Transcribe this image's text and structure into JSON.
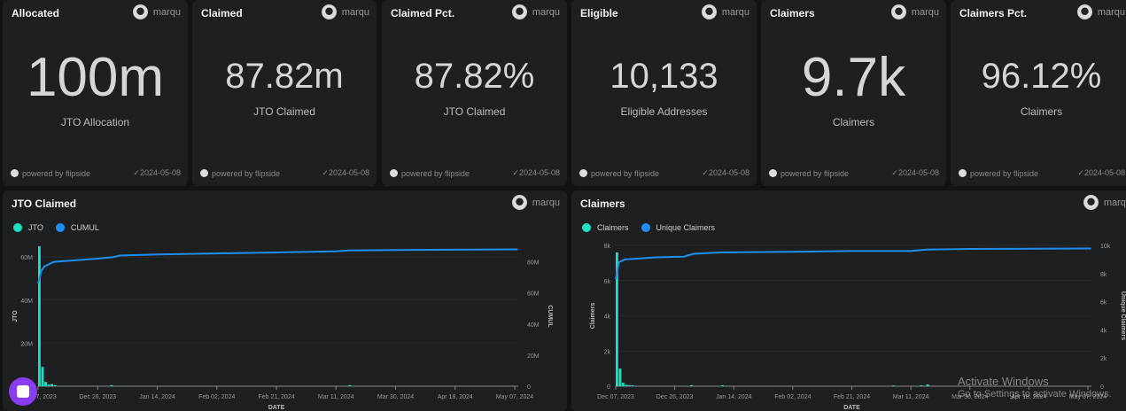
{
  "kpis": [
    {
      "title": "Allocated",
      "author": "marqu",
      "value": "100m",
      "label": "JTO Allocation",
      "powered": "powered by flipside",
      "date": "2024-05-08"
    },
    {
      "title": "Claimed",
      "author": "marqu",
      "value": "87.82m",
      "label": "JTO Claimed",
      "powered": "powered by flipside",
      "date": "2024-05-08"
    },
    {
      "title": "Claimed Pct.",
      "author": "marqu",
      "value": "87.82%",
      "label": "JTO Claimed",
      "powered": "powered by flipside",
      "date": "2024-05-08"
    },
    {
      "title": "Eligible",
      "author": "marqu",
      "value": "10,133",
      "label": "Eligible Addresses",
      "powered": "powered by flipside",
      "date": "2024-05-08"
    },
    {
      "title": "Claimers",
      "author": "marqu",
      "value": "9.7k",
      "label": "Claimers",
      "powered": "powered by flipside",
      "date": "2024-05-08"
    },
    {
      "title": "Claimers Pct.",
      "author": "marqu",
      "value": "96.12%",
      "label": "Claimers",
      "powered": "powered by flipside",
      "date": "2024-05-08"
    }
  ],
  "colors": {
    "bar": "#1de0c5",
    "line": "#1f8ef1"
  },
  "chart_data": [
    {
      "type": "bar+line",
      "title": "JTO Claimed",
      "author": "marqu",
      "xlabel": "DATE",
      "ylabel": "JTO",
      "y2label": "CUMUL",
      "legend": [
        "JTO",
        "CUMUL"
      ],
      "xticks": [
        "Dec 07, 2023",
        "Dec 26, 2023",
        "Jan 14, 2024",
        "Feb 02, 2024",
        "Feb 21, 2024",
        "Mar 11, 2024",
        "Mar 30, 2024",
        "Apr 18, 2024",
        "May 07, 2024"
      ],
      "yticks": [
        "0",
        "20M",
        "40M",
        "60M"
      ],
      "y2ticks": [
        "0",
        "20M",
        "40M",
        "60M",
        "80M"
      ],
      "ylim": [
        0,
        65000000
      ],
      "y2lim": [
        0,
        90000000
      ],
      "bars": [
        [
          "2023-12-07",
          65000000
        ],
        [
          "2023-12-08",
          9000000
        ],
        [
          "2023-12-09",
          2000000
        ],
        [
          "2023-12-10",
          800000
        ],
        [
          "2023-12-11",
          1000000
        ],
        [
          "2023-12-12",
          500000
        ],
        [
          "2023-12-30",
          500000
        ],
        [
          "2024-03-15",
          500000
        ]
      ],
      "line": [
        [
          "2023-12-07",
          66000000
        ],
        [
          "2023-12-08",
          74000000
        ],
        [
          "2023-12-09",
          77000000
        ],
        [
          "2023-12-12",
          80000000
        ],
        [
          "2023-12-26",
          82000000
        ],
        [
          "2023-12-31",
          83000000
        ],
        [
          "2024-01-02",
          84000000
        ],
        [
          "2024-01-14",
          84700000
        ],
        [
          "2024-02-02",
          85400000
        ],
        [
          "2024-02-21",
          86000000
        ],
        [
          "2024-03-11",
          86700000
        ],
        [
          "2024-03-15",
          87300000
        ],
        [
          "2024-03-30",
          87600000
        ],
        [
          "2024-04-18",
          87800000
        ],
        [
          "2024-05-08",
          88000000
        ]
      ]
    },
    {
      "type": "bar+line",
      "title": "Claimers",
      "author": "marqu",
      "xlabel": "DATE",
      "ylabel": "Claimers",
      "y2label": "Unique Claimers",
      "legend": [
        "Claimers",
        "Unique Claimers"
      ],
      "xticks": [
        "Dec 07, 2023",
        "Dec 26, 2023",
        "Jan 14, 2024",
        "Feb 02, 2024",
        "Feb 21, 2024",
        "Mar 11, 2024",
        "Mar 30, 2024",
        "Apr 18, 2024",
        "May 07, 2024"
      ],
      "yticks": [
        "0",
        "2k",
        "4k",
        "6k",
        "8k"
      ],
      "y2ticks": [
        "0",
        "2k",
        "4k",
        "6k",
        "8k",
        "10k"
      ],
      "ylim": [
        0,
        8000
      ],
      "y2lim": [
        0,
        10000
      ],
      "bars": [
        [
          "2023-12-07",
          7600
        ],
        [
          "2023-12-08",
          1000
        ],
        [
          "2023-12-09",
          200
        ],
        [
          "2023-12-10",
          80
        ],
        [
          "2023-12-11",
          60
        ],
        [
          "2023-12-12",
          50
        ],
        [
          "2023-12-31",
          60
        ],
        [
          "2024-01-10",
          50
        ],
        [
          "2024-03-05",
          40
        ],
        [
          "2024-03-14",
          50
        ],
        [
          "2024-03-16",
          100
        ]
      ],
      "line": [
        [
          "2023-12-07",
          7600
        ],
        [
          "2023-12-08",
          8800
        ],
        [
          "2023-12-10",
          9000
        ],
        [
          "2023-12-20",
          9150
        ],
        [
          "2023-12-29",
          9200
        ],
        [
          "2024-01-01",
          9400
        ],
        [
          "2024-01-10",
          9500
        ],
        [
          "2024-02-02",
          9550
        ],
        [
          "2024-02-21",
          9600
        ],
        [
          "2024-03-11",
          9600
        ],
        [
          "2024-03-16",
          9700
        ],
        [
          "2024-03-30",
          9750
        ],
        [
          "2024-05-08",
          9780
        ]
      ]
    }
  ],
  "watermark": {
    "line1": "Activate Windows",
    "line2": "Go to Settings to activate Windows."
  }
}
